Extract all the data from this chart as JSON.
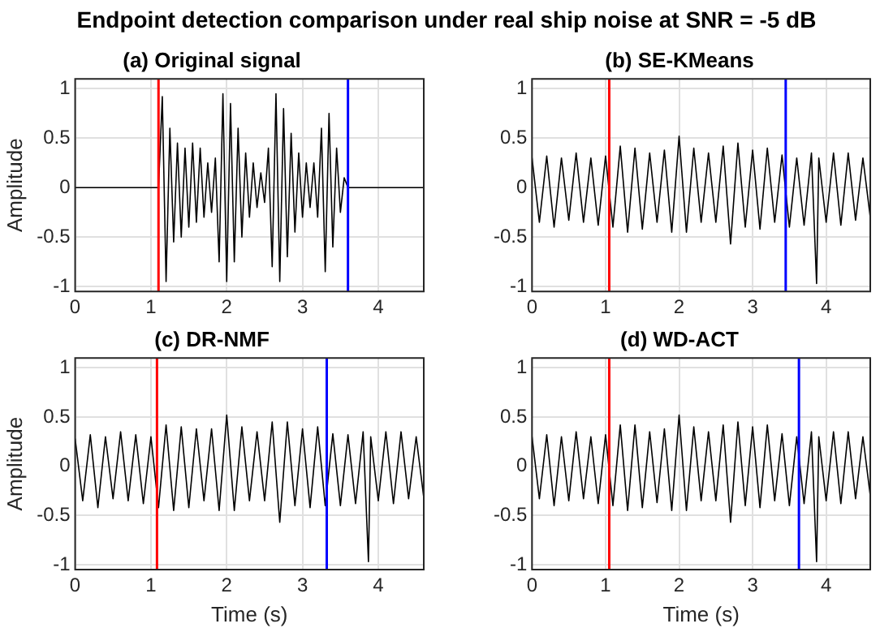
{
  "chart_data": [
    {
      "type": "line",
      "title": "(a) Original signal",
      "ylabel": "Amplitude",
      "annotations": [
        "Endpoint detection comparison under real ship noise at SNR = -5 dB"
      ],
      "xlim": [
        0,
        4.6
      ],
      "ylim": [
        -1.05,
        1.1
      ],
      "xticks": [
        0,
        1,
        2,
        3,
        4
      ],
      "yticks": [
        -1,
        -0.5,
        0,
        0.5,
        1
      ],
      "grid": true,
      "legend": false,
      "marker": "none",
      "series": [
        {
          "color": "#000000",
          "x": [
            0,
            1.1,
            1.15,
            1.2,
            1.25,
            1.3,
            1.35,
            1.4,
            1.45,
            1.5,
            1.55,
            1.6,
            1.65,
            1.7,
            1.75,
            1.8,
            1.85,
            1.9,
            1.95,
            2.0,
            2.05,
            2.1,
            2.15,
            2.2,
            2.25,
            2.3,
            2.35,
            2.4,
            2.45,
            2.5,
            2.55,
            2.6,
            2.65,
            2.7,
            2.75,
            2.8,
            2.85,
            2.9,
            2.95,
            3.0,
            3.05,
            3.1,
            3.15,
            3.2,
            3.25,
            3.3,
            3.35,
            3.4,
            3.45,
            3.5,
            3.55,
            3.6,
            4.6
          ],
          "values": [
            0,
            0,
            0.92,
            -0.95,
            0.6,
            -0.55,
            0.45,
            -0.5,
            0.4,
            -0.4,
            0.45,
            -0.35,
            0.4,
            -0.3,
            0.25,
            -0.25,
            0.3,
            -0.75,
            0.95,
            -0.95,
            0.85,
            -0.75,
            0.6,
            -0.5,
            0.35,
            -0.3,
            0.25,
            -0.2,
            0.15,
            -0.15,
            0.4,
            -0.8,
            0.95,
            -0.95,
            0.8,
            -0.7,
            0.55,
            -0.45,
            0.35,
            -0.3,
            0.25,
            -0.2,
            0.25,
            -0.3,
            0.6,
            -0.85,
            0.75,
            -0.6,
            0.4,
            -0.25,
            0.1,
            0,
            0
          ]
        }
      ],
      "ref_lines": [
        {
          "axis": "x",
          "value": 1.1,
          "color": "#ff0000"
        },
        {
          "axis": "x",
          "value": 3.6,
          "color": "#0000ff"
        }
      ]
    },
    {
      "type": "line",
      "title": "(b) SE-KMeans",
      "xlim": [
        0,
        4.6
      ],
      "ylim": [
        -1.05,
        1.1
      ],
      "xticks": [
        0,
        1,
        2,
        3,
        4
      ],
      "yticks": [
        -1,
        -0.5,
        0,
        0.5,
        1
      ],
      "grid": true,
      "legend": false,
      "marker": "none",
      "series": [
        {
          "color": "#000000",
          "x": [
            0,
            0.1,
            0.2,
            0.3,
            0.4,
            0.5,
            0.6,
            0.7,
            0.8,
            0.9,
            1.0,
            1.1,
            1.2,
            1.3,
            1.4,
            1.5,
            1.6,
            1.7,
            1.8,
            1.9,
            2.0,
            2.1,
            2.2,
            2.3,
            2.4,
            2.5,
            2.6,
            2.7,
            2.8,
            2.9,
            3.0,
            3.1,
            3.2,
            3.3,
            3.4,
            3.5,
            3.6,
            3.7,
            3.8,
            3.87,
            3.9,
            4.0,
            4.1,
            4.2,
            4.3,
            4.4,
            4.5,
            4.6
          ],
          "values": [
            0.3,
            -0.35,
            0.32,
            -0.4,
            0.3,
            -0.33,
            0.35,
            -0.35,
            0.3,
            -0.38,
            0.32,
            -0.4,
            0.42,
            -0.45,
            0.4,
            -0.42,
            0.35,
            -0.35,
            0.38,
            -0.45,
            0.52,
            -0.45,
            0.4,
            -0.35,
            0.35,
            -0.35,
            0.42,
            -0.57,
            0.45,
            -0.4,
            0.38,
            -0.42,
            0.4,
            -0.35,
            0.33,
            -0.4,
            0.3,
            -0.38,
            0.35,
            -0.97,
            0.3,
            -0.35,
            0.35,
            -0.38,
            0.35,
            -0.33,
            0.3,
            -0.3
          ]
        }
      ],
      "ref_lines": [
        {
          "axis": "x",
          "value": 1.05,
          "color": "#ff0000"
        },
        {
          "axis": "x",
          "value": 3.45,
          "color": "#0000ff"
        }
      ]
    },
    {
      "type": "line",
      "title": "(c) DR-NMF",
      "xlabel": "Time (s)",
      "ylabel": "Amplitude",
      "xlim": [
        0,
        4.6
      ],
      "ylim": [
        -1.05,
        1.1
      ],
      "xticks": [
        0,
        1,
        2,
        3,
        4
      ],
      "yticks": [
        -1,
        -0.5,
        0,
        0.5,
        1
      ],
      "grid": true,
      "legend": false,
      "marker": "none",
      "series": [
        {
          "color": "#000000",
          "x": [
            0,
            0.1,
            0.2,
            0.3,
            0.4,
            0.5,
            0.6,
            0.7,
            0.8,
            0.9,
            1.0,
            1.1,
            1.2,
            1.3,
            1.4,
            1.5,
            1.6,
            1.7,
            1.8,
            1.9,
            2.0,
            2.1,
            2.2,
            2.3,
            2.4,
            2.5,
            2.6,
            2.7,
            2.8,
            2.9,
            3.0,
            3.1,
            3.2,
            3.3,
            3.4,
            3.5,
            3.6,
            3.7,
            3.8,
            3.87,
            3.9,
            4.0,
            4.1,
            4.2,
            4.3,
            4.4,
            4.5,
            4.6
          ],
          "values": [
            0.28,
            -0.35,
            0.32,
            -0.42,
            0.3,
            -0.33,
            0.35,
            -0.35,
            0.32,
            -0.38,
            0.3,
            -0.42,
            0.42,
            -0.45,
            0.4,
            -0.42,
            0.38,
            -0.35,
            0.38,
            -0.45,
            0.52,
            -0.45,
            0.4,
            -0.35,
            0.35,
            -0.35,
            0.45,
            -0.57,
            0.45,
            -0.4,
            0.38,
            -0.42,
            0.4,
            -0.4,
            0.33,
            -0.4,
            0.32,
            -0.38,
            0.35,
            -0.97,
            0.3,
            -0.35,
            0.35,
            -0.38,
            0.35,
            -0.33,
            0.3,
            -0.32
          ]
        }
      ],
      "ref_lines": [
        {
          "axis": "x",
          "value": 1.08,
          "color": "#ff0000"
        },
        {
          "axis": "x",
          "value": 3.32,
          "color": "#0000ff"
        }
      ]
    },
    {
      "type": "line",
      "title": "(d) WD-ACT",
      "xlabel": "Time (s)",
      "xlim": [
        0,
        4.6
      ],
      "ylim": [
        -1.05,
        1.1
      ],
      "xticks": [
        0,
        1,
        2,
        3,
        4
      ],
      "yticks": [
        -1,
        -0.5,
        0,
        0.5,
        1
      ],
      "grid": true,
      "legend": false,
      "marker": "none",
      "series": [
        {
          "color": "#000000",
          "x": [
            0,
            0.1,
            0.2,
            0.3,
            0.4,
            0.5,
            0.6,
            0.7,
            0.8,
            0.9,
            1.0,
            1.1,
            1.2,
            1.3,
            1.4,
            1.5,
            1.6,
            1.7,
            1.8,
            1.9,
            2.0,
            2.1,
            2.2,
            2.3,
            2.4,
            2.5,
            2.6,
            2.7,
            2.8,
            2.9,
            3.0,
            3.1,
            3.2,
            3.3,
            3.4,
            3.5,
            3.6,
            3.7,
            3.8,
            3.87,
            3.9,
            4.0,
            4.1,
            4.2,
            4.3,
            4.4,
            4.5,
            4.6
          ],
          "values": [
            0.3,
            -0.33,
            0.32,
            -0.4,
            0.3,
            -0.35,
            0.35,
            -0.33,
            0.3,
            -0.38,
            0.32,
            -0.4,
            0.42,
            -0.45,
            0.42,
            -0.42,
            0.35,
            -0.37,
            0.38,
            -0.45,
            0.52,
            -0.45,
            0.4,
            -0.35,
            0.35,
            -0.35,
            0.42,
            -0.57,
            0.45,
            -0.4,
            0.4,
            -0.42,
            0.42,
            -0.35,
            0.33,
            -0.4,
            0.3,
            -0.38,
            0.35,
            -0.97,
            0.3,
            -0.35,
            0.35,
            -0.38,
            0.35,
            -0.33,
            0.3,
            -0.3
          ]
        }
      ],
      "ref_lines": [
        {
          "axis": "x",
          "value": 1.05,
          "color": "#ff0000"
        },
        {
          "axis": "x",
          "value": 3.63,
          "color": "#0000ff"
        }
      ]
    }
  ]
}
